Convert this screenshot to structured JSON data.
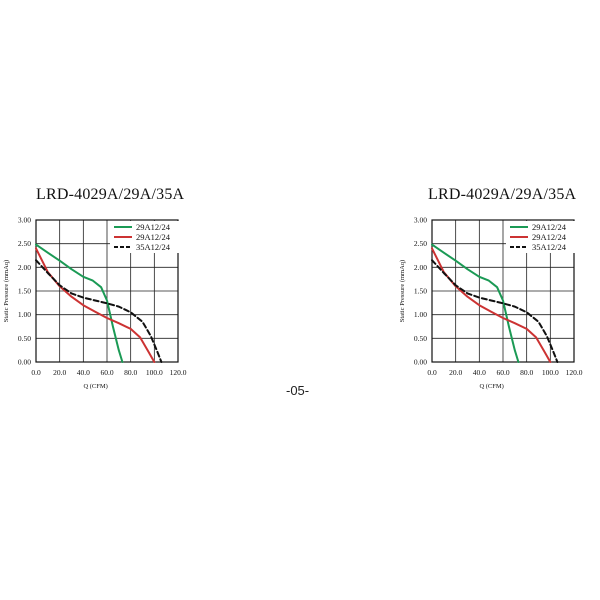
{
  "page": {
    "number": "-05-"
  },
  "chart_data": [
    {
      "type": "line",
      "title": "LRD-4029A/29A/35A",
      "xlabel": "Q (CFM)",
      "ylabel": "Static Pressure (mmAq)",
      "xlim": [
        0,
        120
      ],
      "ylim": [
        0,
        3
      ],
      "xticks": [
        "0.0",
        "20.0",
        "40.0",
        "60.0",
        "80.0",
        "100.0",
        "120.0"
      ],
      "yticks": [
        "0.00",
        "0.50",
        "1.00",
        "1.50",
        "2.00",
        "2.50",
        "3.00"
      ],
      "grid": true,
      "legend_position": "top-right",
      "series": [
        {
          "name": "29A12/24",
          "color": "#1b9a55",
          "dash": "solid",
          "x": [
            0,
            10,
            20,
            30,
            40,
            48,
            55,
            60,
            65,
            70,
            73
          ],
          "y": [
            2.48,
            2.31,
            2.14,
            1.96,
            1.8,
            1.72,
            1.58,
            1.3,
            0.75,
            0.25,
            0.0
          ]
        },
        {
          "name": "29A12/24",
          "color": "#cc3333",
          "dash": "solid",
          "x": [
            0,
            10,
            20,
            30,
            40,
            50,
            60,
            70,
            80,
            88,
            95,
            100
          ],
          "y": [
            2.4,
            1.9,
            1.6,
            1.38,
            1.2,
            1.06,
            0.93,
            0.82,
            0.7,
            0.52,
            0.22,
            0.0
          ]
        },
        {
          "name": "35A12/24",
          "color": "#111111",
          "dash": "dashed",
          "x": [
            0,
            10,
            20,
            30,
            40,
            50,
            60,
            70,
            80,
            90,
            97,
            102,
            106
          ],
          "y": [
            2.15,
            1.88,
            1.62,
            1.45,
            1.36,
            1.3,
            1.24,
            1.17,
            1.05,
            0.85,
            0.55,
            0.25,
            0.0
          ]
        }
      ]
    },
    {
      "type": "line",
      "title": "LRD-4029A/29A/35A",
      "xlabel": "Q (CFM)",
      "ylabel": "Static Pressure (mmAq)",
      "xlim": [
        0,
        120
      ],
      "ylim": [
        0,
        3
      ],
      "xticks": [
        "0.0",
        "20.0",
        "40.0",
        "60.0",
        "80.0",
        "100.0",
        "120.0"
      ],
      "yticks": [
        "0.00",
        "0.50",
        "1.00",
        "1.50",
        "2.00",
        "2.50",
        "3.00"
      ],
      "grid": true,
      "legend_position": "top-right",
      "series": [
        {
          "name": "29A12/24",
          "color": "#1b9a55",
          "dash": "solid",
          "x": [
            0,
            10,
            20,
            30,
            40,
            48,
            55,
            60,
            65,
            70,
            73
          ],
          "y": [
            2.48,
            2.31,
            2.14,
            1.96,
            1.8,
            1.72,
            1.58,
            1.3,
            0.75,
            0.25,
            0.0
          ]
        },
        {
          "name": "29A12/24",
          "color": "#cc3333",
          "dash": "solid",
          "x": [
            0,
            10,
            20,
            30,
            40,
            50,
            60,
            70,
            80,
            88,
            95,
            100
          ],
          "y": [
            2.4,
            1.9,
            1.6,
            1.38,
            1.2,
            1.06,
            0.93,
            0.82,
            0.7,
            0.52,
            0.22,
            0.0
          ]
        },
        {
          "name": "35A12/24",
          "color": "#111111",
          "dash": "dashed",
          "x": [
            0,
            10,
            20,
            30,
            40,
            50,
            60,
            70,
            80,
            90,
            97,
            102,
            106
          ],
          "y": [
            2.15,
            1.88,
            1.62,
            1.45,
            1.36,
            1.3,
            1.24,
            1.17,
            1.05,
            0.85,
            0.55,
            0.25,
            0.0
          ]
        }
      ]
    }
  ]
}
